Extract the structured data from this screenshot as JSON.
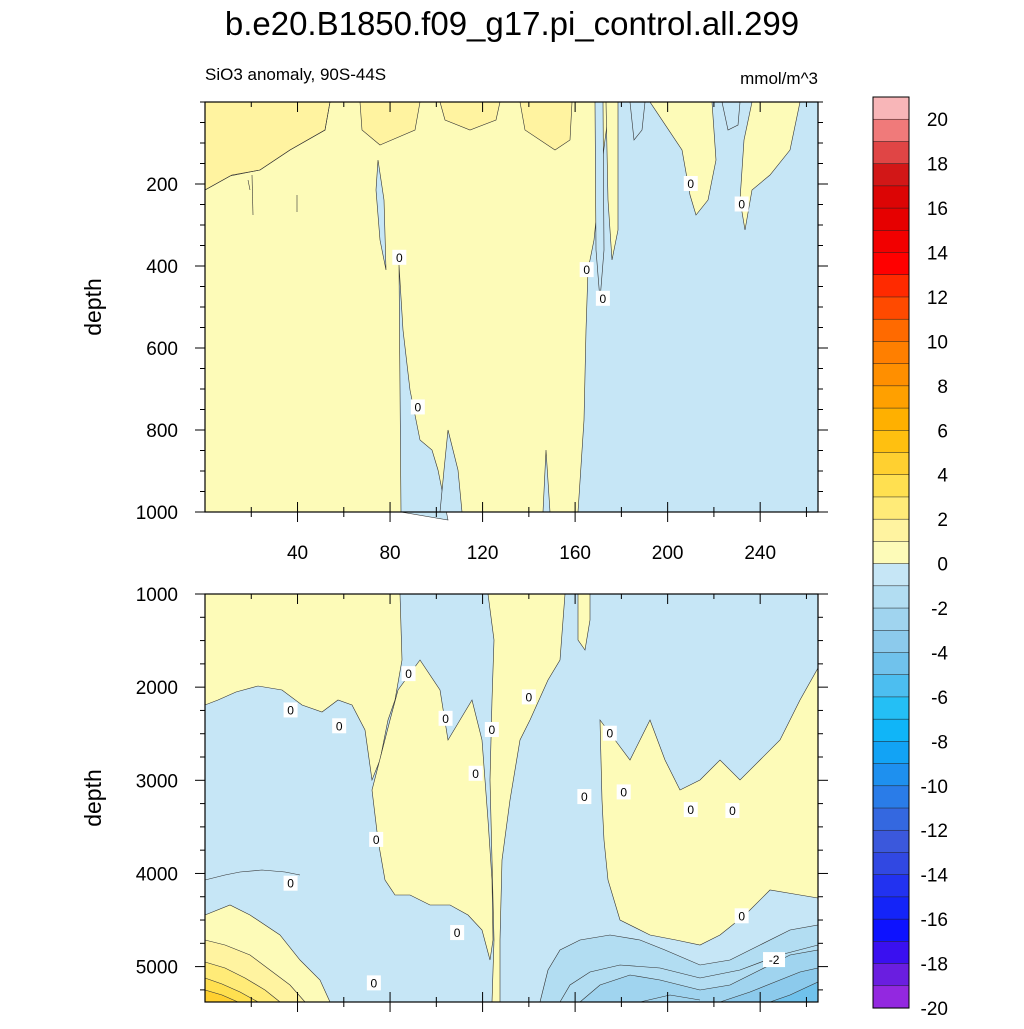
{
  "chart_data": {
    "type": "contour",
    "title": "b.e20.B1850.f09_g17.pi_control.all.299",
    "subtitle_left": "SiO3 anomaly, 90S-44S",
    "subtitle_right": "mmol/m^3",
    "xlim": [
      0,
      265
    ],
    "x_ticks": [
      40,
      80,
      120,
      160,
      200,
      240
    ],
    "colorbar": {
      "levels": [
        -20,
        -18,
        -16,
        -14,
        -12,
        -10,
        -8,
        -6,
        -4,
        -2,
        0,
        2,
        4,
        6,
        8,
        10,
        12,
        14,
        16,
        18,
        20
      ],
      "tick_labels": [
        "20",
        "18",
        "16",
        "14",
        "12",
        "10",
        "8",
        "6",
        "4",
        "2",
        "0",
        "-2",
        "-4",
        "-6",
        "-8",
        "-10",
        "-12",
        "-14",
        "-16",
        "-18",
        "-20"
      ],
      "colors_top_to_bottom": [
        "#f8b6b8",
        "#f07a7a",
        "#e04545",
        "#d21717",
        "#dc0505",
        "#e60000",
        "#f20000",
        "#ff0000",
        "#ff2a00",
        "#ff4a00",
        "#ff6a00",
        "#ff7f00",
        "#ff8f00",
        "#ffa000",
        "#ffb000",
        "#ffc010",
        "#ffd030",
        "#ffe050",
        "#ffeb78",
        "#fff3a0",
        "#fdfbb8",
        "#c6e6f6",
        "#b2ddf2",
        "#a0d4ef",
        "#8ccaec",
        "#70c2ec",
        "#4cbef0",
        "#24bff5",
        "#10b5f8",
        "#12a3f5",
        "#1e90ef",
        "#2a7ce8",
        "#3468e0",
        "#3b58dc",
        "#3148e2",
        "#2232f0",
        "#1424f8",
        "#0d12ff",
        "#3a10f0",
        "#6a1ee0",
        "#9328e0"
      ]
    },
    "panels": [
      {
        "name": "upper",
        "ylabel": "depth",
        "ylim": [
          0,
          1000
        ],
        "y_ticks": [
          200,
          400,
          600,
          800,
          1000
        ],
        "contour_labels": [
          {
            "x": 84,
            "depth": 380,
            "text": "0"
          },
          {
            "x": 165,
            "depth": 410,
            "text": "0"
          },
          {
            "x": 172,
            "depth": 480,
            "text": "0"
          },
          {
            "x": 92,
            "depth": 745,
            "text": "0"
          },
          {
            "x": 210,
            "depth": 200,
            "text": "0"
          },
          {
            "x": 232,
            "depth": 250,
            "text": "0"
          }
        ]
      },
      {
        "name": "lower",
        "ylabel": "depth",
        "ylim": [
          1000,
          5380
        ],
        "y_ticks": [
          1000,
          2000,
          3000,
          4000,
          5000
        ],
        "contour_labels": [
          {
            "x": 37,
            "depth": 2250,
            "text": "0"
          },
          {
            "x": 58,
            "depth": 2420,
            "text": "0"
          },
          {
            "x": 88,
            "depth": 1860,
            "text": "0"
          },
          {
            "x": 104,
            "depth": 2340,
            "text": "0"
          },
          {
            "x": 117,
            "depth": 2930,
            "text": "0"
          },
          {
            "x": 124,
            "depth": 2460,
            "text": "0"
          },
          {
            "x": 140,
            "depth": 2110,
            "text": "0"
          },
          {
            "x": 164,
            "depth": 3180,
            "text": "0"
          },
          {
            "x": 175,
            "depth": 2500,
            "text": "0"
          },
          {
            "x": 181,
            "depth": 3130,
            "text": "0"
          },
          {
            "x": 210,
            "depth": 3320,
            "text": "0"
          },
          {
            "x": 228,
            "depth": 3330,
            "text": "0"
          },
          {
            "x": 74,
            "depth": 3640,
            "text": "0"
          },
          {
            "x": 37,
            "depth": 4110,
            "text": "0"
          },
          {
            "x": 109,
            "depth": 4640,
            "text": "0"
          },
          {
            "x": 232,
            "depth": 4460,
            "text": "0"
          },
          {
            "x": 73,
            "depth": 5180,
            "text": "0"
          },
          {
            "x": 246,
            "depth": 4930,
            "text": "-2"
          }
        ]
      }
    ]
  }
}
